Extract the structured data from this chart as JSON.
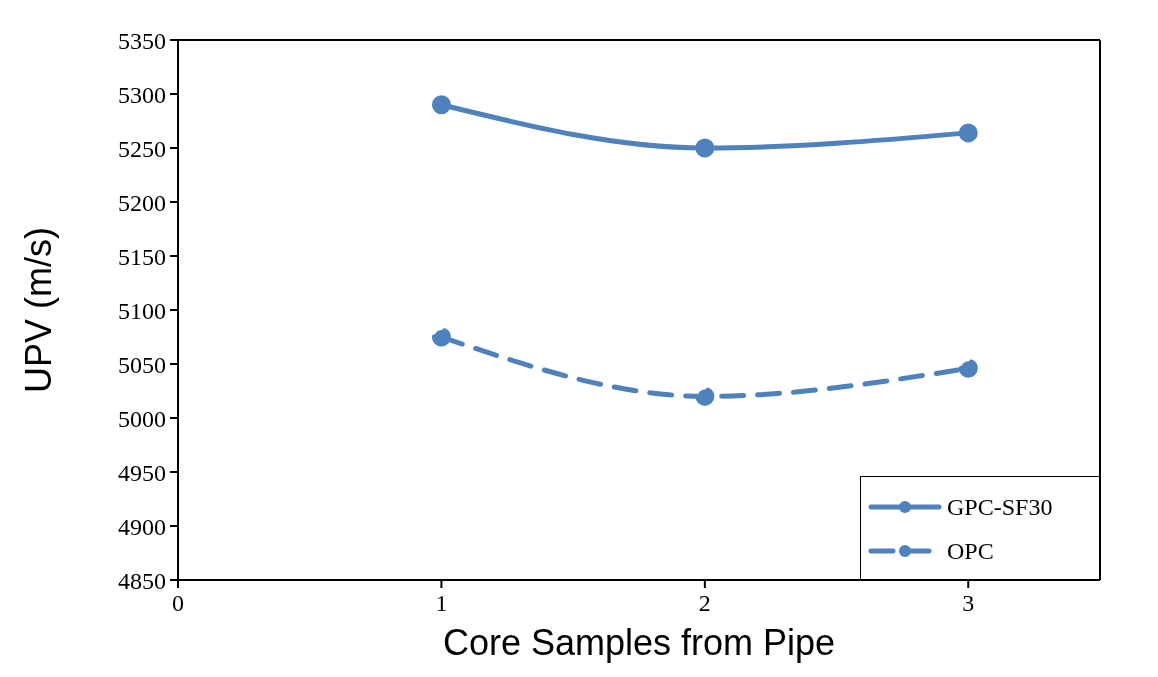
{
  "chart_data": {
    "type": "line",
    "xlabel": "Core Samples from Pipe",
    "ylabel": "UPV (m/s)",
    "x": [
      1,
      2,
      3
    ],
    "series": [
      {
        "name": "GPC-SF30",
        "color": "#4f81bd",
        "values": [
          5290,
          5250,
          5264
        ],
        "line_style": "solid"
      },
      {
        "name": "OPC",
        "color": "#4f81bd",
        "values": [
          5075,
          5020,
          5046
        ],
        "line_style": "dashed"
      }
    ],
    "xlim": [
      0,
      3.5
    ],
    "xticks": [
      0,
      1,
      2,
      3
    ],
    "ylim": [
      4850,
      5350
    ],
    "yticks": [
      4850,
      4900,
      4950,
      5000,
      5050,
      5100,
      5150,
      5200,
      5250,
      5300,
      5350
    ],
    "grid": false,
    "legend": "bottom right",
    "marker": "circle"
  }
}
